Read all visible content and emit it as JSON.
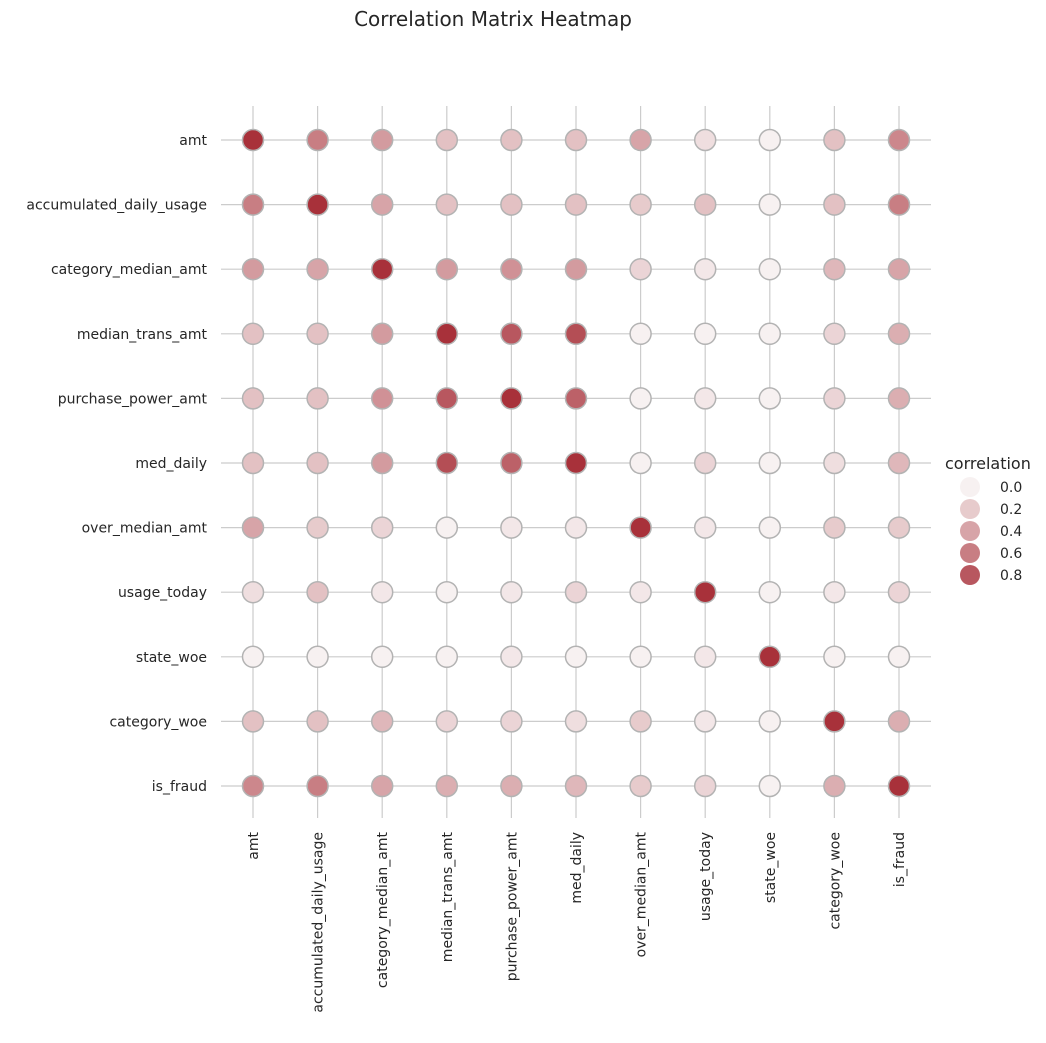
{
  "chart_data": {
    "type": "heatmap",
    "subtype": "circle-scatter-correlation",
    "title": "Correlation Matrix Heatmap",
    "xlabel": "",
    "ylabel": "",
    "variables": [
      "amt",
      "accumulated_daily_usage",
      "category_median_amt",
      "median_trans_amt",
      "purchase_power_amt",
      "med_daily",
      "over_median_amt",
      "usage_today",
      "state_woe",
      "category_woe",
      "is_fraud"
    ],
    "matrix": [
      [
        1.0,
        0.6,
        0.45,
        0.25,
        0.25,
        0.25,
        0.4,
        0.1,
        0.0,
        0.25,
        0.55
      ],
      [
        0.6,
        1.0,
        0.4,
        0.25,
        0.25,
        0.25,
        0.2,
        0.25,
        0.0,
        0.25,
        0.6
      ],
      [
        0.45,
        0.4,
        1.0,
        0.45,
        0.5,
        0.45,
        0.15,
        0.05,
        0.0,
        0.3,
        0.4
      ],
      [
        0.25,
        0.25,
        0.45,
        1.0,
        0.8,
        0.85,
        0.0,
        0.0,
        0.0,
        0.15,
        0.35
      ],
      [
        0.25,
        0.25,
        0.5,
        0.8,
        1.0,
        0.75,
        0.0,
        0.05,
        0.0,
        0.15,
        0.35
      ],
      [
        0.25,
        0.25,
        0.45,
        0.85,
        0.75,
        1.0,
        0.0,
        0.15,
        0.0,
        0.1,
        0.3
      ],
      [
        0.4,
        0.2,
        0.15,
        0.0,
        0.05,
        0.05,
        1.0,
        0.05,
        0.0,
        0.2,
        0.2
      ],
      [
        0.1,
        0.25,
        0.05,
        0.0,
        0.05,
        0.15,
        0.05,
        1.0,
        0.0,
        0.05,
        0.15
      ],
      [
        0.0,
        0.0,
        0.0,
        0.0,
        0.05,
        0.0,
        0.0,
        0.05,
        1.0,
        0.0,
        0.0
      ],
      [
        0.25,
        0.25,
        0.3,
        0.15,
        0.15,
        0.1,
        0.2,
        0.05,
        0.0,
        1.0,
        0.35
      ],
      [
        0.55,
        0.6,
        0.4,
        0.35,
        0.35,
        0.3,
        0.2,
        0.15,
        0.0,
        0.35,
        1.0
      ]
    ],
    "legend": {
      "title": "correlation",
      "position": "right",
      "entries": [
        {
          "label": "0.0",
          "value": 0.0
        },
        {
          "label": "0.2",
          "value": 0.2
        },
        {
          "label": "0.4",
          "value": 0.4
        },
        {
          "label": "0.6",
          "value": 0.6
        },
        {
          "label": "0.8",
          "value": 0.8
        }
      ]
    },
    "grid": true,
    "color_scale": {
      "low": "#f7f1f1",
      "high": "#a8313a"
    },
    "marker_edge_color": "#b3b3b3",
    "grid_color": "#cccccc"
  }
}
